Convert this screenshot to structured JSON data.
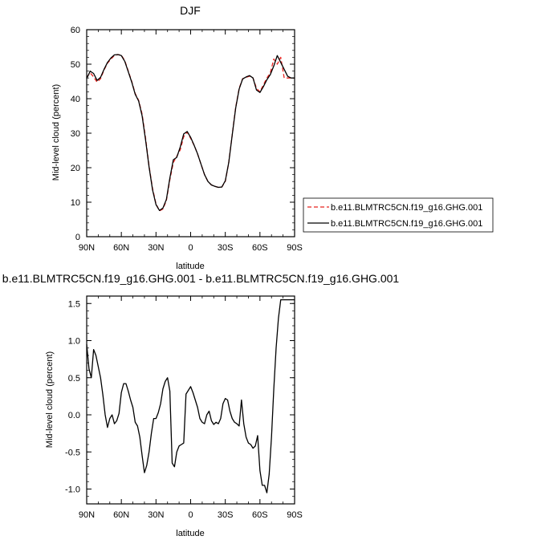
{
  "chart_data": [
    {
      "type": "line",
      "title": "DJF",
      "xlabel": "latitude",
      "ylabel": "Mid-level cloud (percent)",
      "x_tick_labels": [
        "90N",
        "60N",
        "30N",
        "0",
        "30S",
        "60S",
        "90S"
      ],
      "x_tick_values": [
        -90,
        -60,
        -30,
        0,
        30,
        60,
        90
      ],
      "xlim": [
        -90,
        90
      ],
      "ylim": [
        0,
        60
      ],
      "y_ticks": [
        0,
        10,
        20,
        30,
        40,
        50,
        60
      ],
      "grid": false,
      "legend_placement": "outside-right",
      "series": [
        {
          "name": "b.e11.BLMTRC5CN.f19_g16.GHG.001",
          "color": "#e8231f",
          "dash": "dashed",
          "x": [
            -90,
            -87,
            -84,
            -81,
            -78,
            -75,
            -72,
            -69,
            -66,
            -63,
            -60,
            -57,
            -54,
            -51,
            -48,
            -45,
            -42,
            -39,
            -36,
            -33,
            -30,
            -27,
            -24,
            -21,
            -18,
            -15,
            -12,
            -9,
            -6,
            -3,
            0,
            3,
            6,
            9,
            12,
            15,
            18,
            21,
            24,
            27,
            30,
            33,
            36,
            39,
            42,
            45,
            48,
            51,
            54,
            57,
            60,
            63,
            66,
            69,
            72,
            75,
            78,
            81,
            84,
            87,
            90
          ],
          "values": [
            46.2,
            47.5,
            46.3,
            44.8,
            45.8,
            48.3,
            50.3,
            51.5,
            52.5,
            52.8,
            52.6,
            51.0,
            48.0,
            45.0,
            41.5,
            39.5,
            35.5,
            28.5,
            20.5,
            14.0,
            9.5,
            7.5,
            8.0,
            10.5,
            16.5,
            21.5,
            23.3,
            25.2,
            29.0,
            30.3,
            28.5,
            26.5,
            24.0,
            21.0,
            18.0,
            16.0,
            15.0,
            14.6,
            14.3,
            14.4,
            16.0,
            21.5,
            29.5,
            37.5,
            43.0,
            45.8,
            46.2,
            46.5,
            46.0,
            43.0,
            42.0,
            44.0,
            46.0,
            47.5,
            51.5,
            50.0,
            52.0,
            46.0,
            46.0,
            46.0,
            46.0
          ]
        },
        {
          "name": "b.e11.BLMTRC5CN.f19_g16.GHG.001",
          "color": "#000000",
          "dash": "solid",
          "x": [
            -90,
            -87,
            -84,
            -81,
            -78,
            -75,
            -72,
            -69,
            -66,
            -63,
            -60,
            -57,
            -54,
            -51,
            -48,
            -45,
            -42,
            -39,
            -36,
            -33,
            -30,
            -27,
            -24,
            -21,
            -18,
            -15,
            -12,
            -9,
            -6,
            -3,
            0,
            3,
            6,
            9,
            12,
            15,
            18,
            21,
            24,
            27,
            30,
            33,
            36,
            39,
            42,
            45,
            48,
            51,
            54,
            57,
            60,
            63,
            66,
            69,
            72,
            75,
            78,
            81,
            84,
            87,
            90
          ],
          "values": [
            45.8,
            48.0,
            47.3,
            45.3,
            46.2,
            48.5,
            50.5,
            51.8,
            52.7,
            52.8,
            52.5,
            50.8,
            47.8,
            44.8,
            41.3,
            39.3,
            35.0,
            28.0,
            20.2,
            13.6,
            9.3,
            7.6,
            8.3,
            10.8,
            17.0,
            22.3,
            23.0,
            26.0,
            29.8,
            30.5,
            28.8,
            26.5,
            24.0,
            21.0,
            18.0,
            16.0,
            15.0,
            14.6,
            14.3,
            14.4,
            16.2,
            21.5,
            29.5,
            37.3,
            42.8,
            45.7,
            46.3,
            46.7,
            46.0,
            42.5,
            41.8,
            43.5,
            45.5,
            47.0,
            49.5,
            52.5,
            50.5,
            48.5,
            46.5,
            46.0,
            46.0
          ]
        }
      ]
    },
    {
      "type": "line",
      "title": "b.e11.BLMTRC5CN.f19_g16.GHG.001 - b.e11.BLMTRC5CN.f19_g16.GHG.001",
      "xlabel": "latitude",
      "ylabel": "Mid-level cloud (percent)",
      "x_tick_labels": [
        "90N",
        "60N",
        "30N",
        "0",
        "30S",
        "60S",
        "90S"
      ],
      "x_tick_values": [
        -90,
        -60,
        -30,
        0,
        30,
        60,
        90
      ],
      "xlim": [
        -90,
        90
      ],
      "ylim": [
        -1.2,
        1.6
      ],
      "y_ticks": [
        -1.0,
        -0.5,
        0.0,
        0.5,
        1.0,
        1.5
      ],
      "y_tick_labels": [
        "-1.0",
        "-0.5",
        "0.0",
        "0.5",
        "1.0",
        "1.5"
      ],
      "grid": false,
      "series": [
        {
          "color": "#000000",
          "x": [
            -90,
            -88,
            -86,
            -84,
            -82,
            -80,
            -78,
            -76,
            -74,
            -72,
            -70,
            -68,
            -66,
            -64,
            -62,
            -60,
            -58,
            -56,
            -54,
            -52,
            -50,
            -48,
            -46,
            -44,
            -42,
            -40,
            -38,
            -36,
            -34,
            -32,
            -30,
            -28,
            -26,
            -24,
            -22,
            -20,
            -18,
            -16,
            -14,
            -12,
            -10,
            -8,
            -6,
            -4,
            -2,
            0,
            2,
            4,
            6,
            8,
            10,
            12,
            14,
            16,
            18,
            20,
            22,
            24,
            26,
            28,
            30,
            32,
            34,
            36,
            38,
            40,
            42,
            44,
            46,
            48,
            50,
            52,
            54,
            56,
            58,
            60,
            62,
            64,
            66,
            68,
            70,
            72,
            74,
            76,
            78,
            80,
            82,
            84,
            86,
            88,
            90
          ],
          "values": [
            0.95,
            0.62,
            0.5,
            0.88,
            0.8,
            0.65,
            0.5,
            0.27,
            0.0,
            -0.17,
            -0.05,
            0.0,
            -0.12,
            -0.08,
            0.02,
            0.3,
            0.42,
            0.42,
            0.32,
            0.2,
            0.1,
            -0.1,
            -0.15,
            -0.3,
            -0.55,
            -0.78,
            -0.68,
            -0.5,
            -0.25,
            -0.05,
            -0.05,
            0.03,
            0.15,
            0.35,
            0.45,
            0.5,
            0.32,
            -0.65,
            -0.7,
            -0.5,
            -0.42,
            -0.4,
            -0.38,
            0.28,
            0.33,
            0.38,
            0.3,
            0.2,
            0.1,
            -0.05,
            -0.1,
            -0.12,
            0.0,
            0.05,
            -0.08,
            -0.13,
            -0.1,
            -0.12,
            -0.05,
            0.15,
            0.22,
            0.2,
            0.05,
            -0.05,
            -0.1,
            -0.12,
            -0.15,
            0.2,
            -0.12,
            -0.3,
            -0.38,
            -0.4,
            -0.45,
            -0.42,
            -0.28,
            -0.75,
            -0.95,
            -0.95,
            -1.05,
            -0.8,
            -0.3,
            0.35,
            0.9,
            1.3,
            1.55,
            1.55,
            1.55,
            1.55,
            1.55,
            1.55,
            1.55
          ]
        }
      ]
    }
  ]
}
